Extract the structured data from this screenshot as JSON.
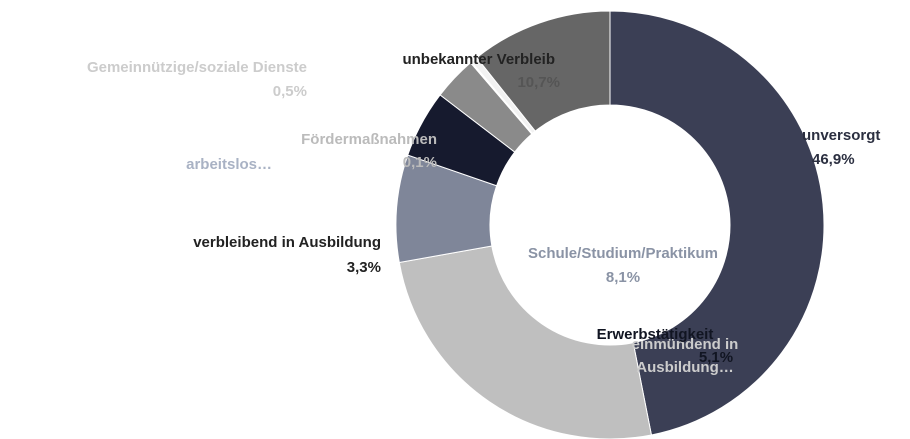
{
  "chart_data": {
    "type": "donut",
    "categories": [
      "unversorgt",
      "einmündend in Ausbildung…",
      "Schule/Studium/Praktikum",
      "Erwerbstätigkeit",
      "verbleibend in Ausbildung",
      "arbeitslos…",
      "Fördermaßnahmen",
      "Gemeinnützige/soziale Dienste",
      "unbekannter Verbleib"
    ],
    "values": [
      46.9,
      25.3,
      8.1,
      5.1,
      3.3,
      0,
      0.1,
      0.5,
      10.7
    ],
    "value_labels": [
      "46,9%",
      null,
      "8,1%",
      "5,1%",
      "3,3%",
      null,
      "0,1%",
      "0,5%",
      "10,7%"
    ],
    "colors": [
      "#3b3f55",
      "#bfbfbf",
      "#7f8699",
      "#161a2e",
      "#8a8a8a",
      "#a9b2c4",
      "#ffffff",
      "#f2f2f2",
      "#666666"
    ]
  }
}
